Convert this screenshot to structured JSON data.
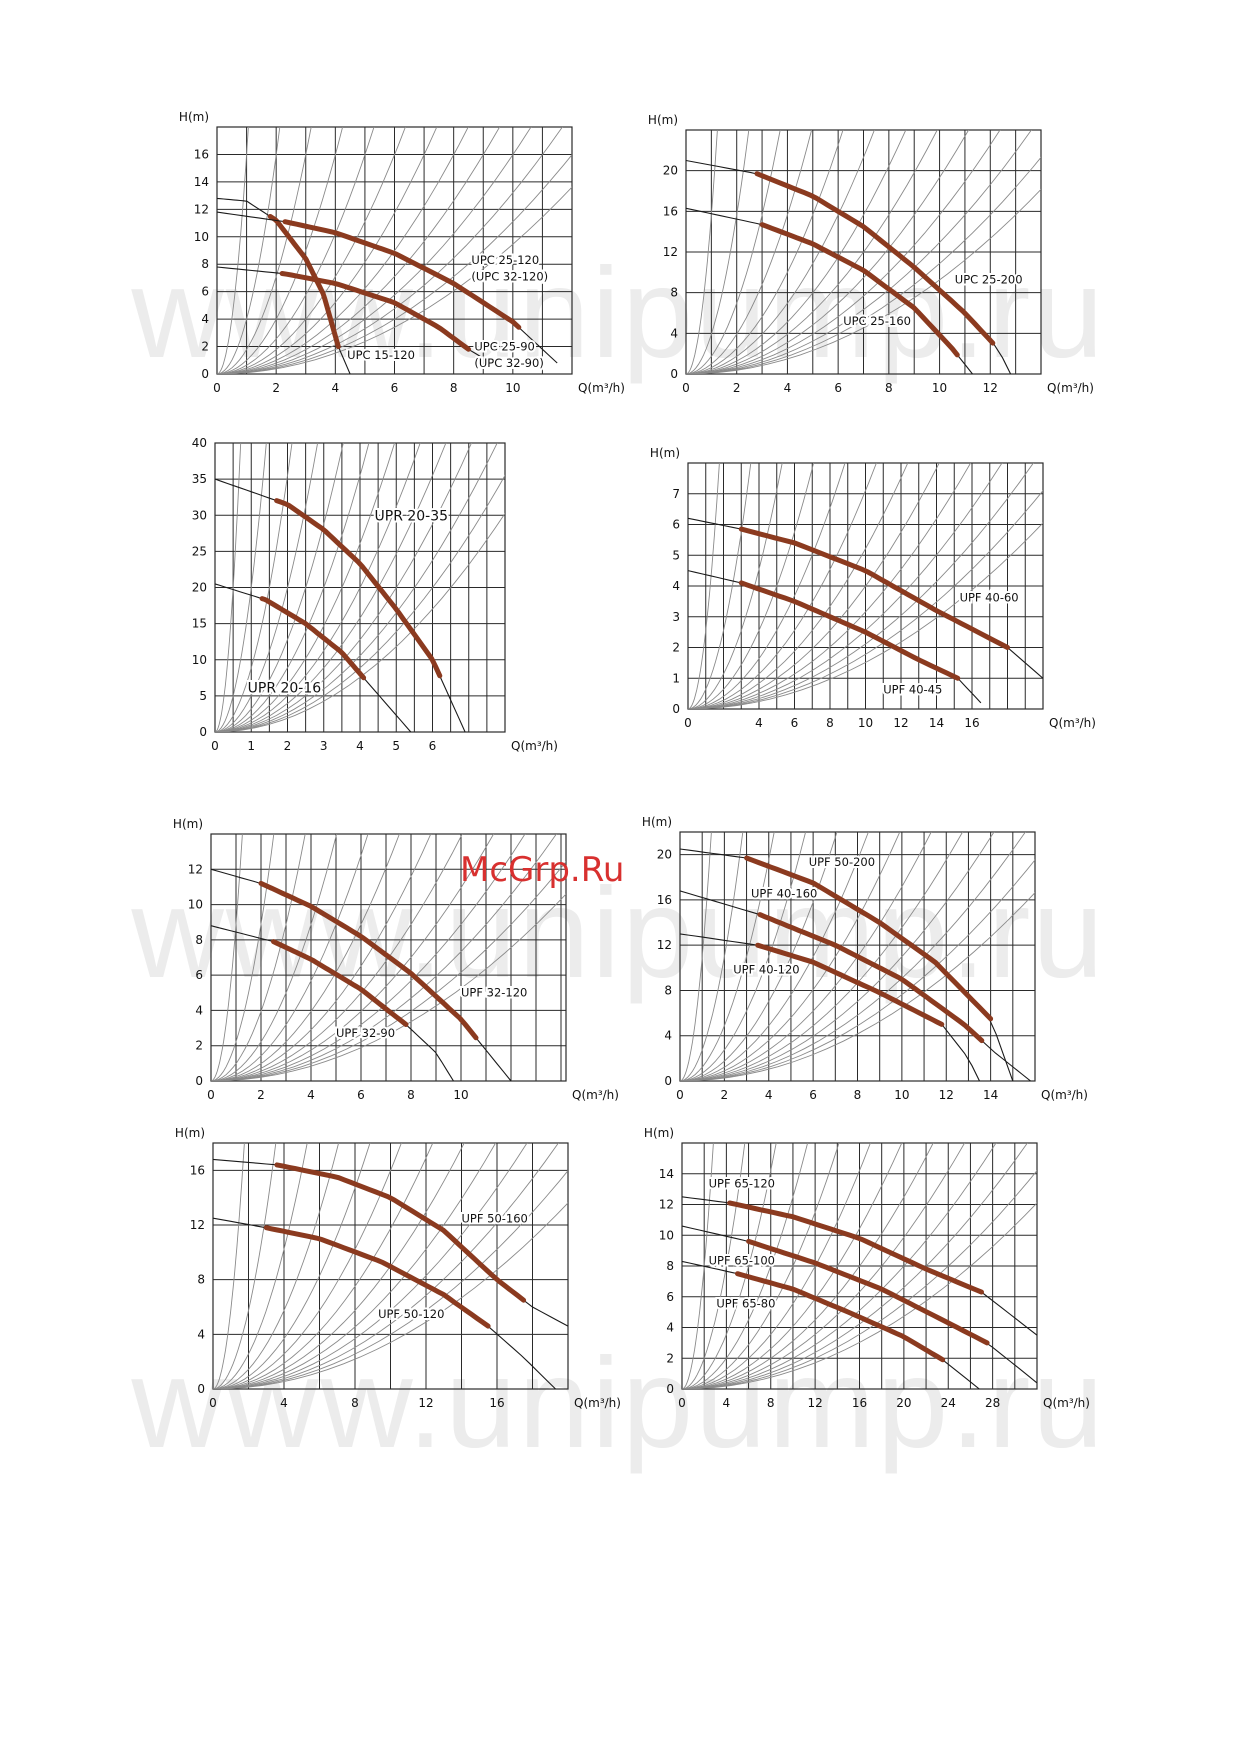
{
  "watermarks": [
    "www.unipump.ru",
    "www.unipump.ru",
    "www.unipump.ru"
  ],
  "overlay_text": "McGrp.Ru",
  "colors": {
    "grid": "#2a2a2a",
    "system_curve": "#8a8a8a",
    "pump_curve": "#1a1a1a",
    "work_range": "#8b3a1f",
    "watermark": "#ececec",
    "overlay": "#d8302f"
  },
  "chart_data": [
    {
      "type": "line",
      "ylabel": "H(m)",
      "xlabel": "Q(m³/h)",
      "xlim": [
        0,
        12
      ],
      "ylim": [
        0,
        18
      ],
      "xticks": [
        0,
        2,
        4,
        6,
        8,
        10
      ],
      "yticks": [
        0,
        2,
        4,
        6,
        8,
        10,
        12,
        14,
        16
      ],
      "series": [
        {
          "name": "UPC 15-120",
          "max_flow": 4.5,
          "points": [
            [
              0,
              12.8
            ],
            [
              1,
              12.6
            ],
            [
              2,
              11.2
            ],
            [
              3,
              8.4
            ],
            [
              3.6,
              5.8
            ],
            [
              4.1,
              2
            ],
            [
              4.5,
              0
            ]
          ],
          "range": [
            1.8,
            4.1
          ]
        },
        {
          "name": "UPC 25-120 (UPC 32-120)",
          "max_flow": 11.5,
          "points": [
            [
              0,
              11.8
            ],
            [
              2.3,
              11.1
            ],
            [
              4,
              10.3
            ],
            [
              6,
              8.8
            ],
            [
              8,
              6.6
            ],
            [
              10,
              3.8
            ],
            [
              11.5,
              0.8
            ]
          ],
          "range": [
            2.3,
            10.2
          ]
        },
        {
          "name": "UPC 25-90 (UPC 32-90)",
          "max_flow": 9.5,
          "points": [
            [
              0,
              7.8
            ],
            [
              2.3,
              7.3
            ],
            [
              4,
              6.6
            ],
            [
              6,
              5.2
            ],
            [
              7.5,
              3.4
            ],
            [
              8.5,
              1.8
            ],
            [
              9.5,
              0.5
            ]
          ],
          "range": [
            2.2,
            8.5
          ]
        }
      ],
      "labels": [
        {
          "text": "UPC 25-120",
          "x": 8.6,
          "y": 8
        },
        {
          "text": "(UPC 32-120)",
          "x": 8.6,
          "y": 6.8
        },
        {
          "text": "UPC 25-90",
          "x": 8.7,
          "y": 1.7
        },
        {
          "text": "(UPC 32-90)",
          "x": 8.7,
          "y": 0.5
        },
        {
          "text": "UPC 15-120",
          "x": 4.4,
          "y": 1.1
        }
      ]
    },
    {
      "type": "line",
      "ylabel": "H(m)",
      "xlabel": "Q(m³/h)",
      "xlim": [
        0,
        14
      ],
      "ylim": [
        0,
        24
      ],
      "xticks": [
        0,
        2,
        4,
        6,
        8,
        10,
        12
      ],
      "yticks": [
        0,
        4,
        8,
        12,
        16,
        20
      ],
      "series": [
        {
          "name": "UPC 25-200",
          "max_flow": 12.8,
          "points": [
            [
              0,
              21
            ],
            [
              2.8,
              19.7
            ],
            [
              5,
              17.5
            ],
            [
              7,
              14.5
            ],
            [
              9,
              10.5
            ],
            [
              11,
              6
            ],
            [
              12.3,
              2.5
            ],
            [
              12.8,
              0
            ]
          ],
          "range": [
            2.8,
            12.1
          ]
        },
        {
          "name": "UPC 25-160",
          "max_flow": 11.3,
          "points": [
            [
              0,
              16.3
            ],
            [
              3,
              14.7
            ],
            [
              5,
              12.8
            ],
            [
              7,
              10.2
            ],
            [
              9,
              6.5
            ],
            [
              10.5,
              2.5
            ],
            [
              11.3,
              0
            ]
          ],
          "range": [
            3,
            10.7
          ]
        }
      ],
      "labels": [
        {
          "text": "UPC 25-200",
          "x": 10.6,
          "y": 8.9
        },
        {
          "text": "UPC 25-160",
          "x": 6.2,
          "y": 4.8
        }
      ]
    },
    {
      "type": "line",
      "ylabel": "",
      "xlabel": "Q(m³/h)",
      "xlim": [
        0,
        8
      ],
      "ylim": [
        0,
        40
      ],
      "xticks": [
        0,
        1,
        2,
        3,
        4,
        5,
        6
      ],
      "yticks": [
        0,
        5,
        10,
        15,
        20,
        25,
        30,
        35,
        40
      ],
      "series": [
        {
          "name": "UPR 20-35",
          "max_flow": 6.9,
          "points": [
            [
              0,
              35
            ],
            [
              2,
              31.5
            ],
            [
              3,
              28
            ],
            [
              4,
              23.3
            ],
            [
              5,
              17
            ],
            [
              6,
              10
            ],
            [
              6.9,
              0
            ]
          ],
          "range": [
            1.7,
            6.2
          ]
        },
        {
          "name": "UPR 20-16",
          "max_flow": 5.4,
          "points": [
            [
              0,
              20.5
            ],
            [
              1.4,
              18.3
            ],
            [
              2.5,
              15
            ],
            [
              3.5,
              11
            ],
            [
              4.1,
              7.5
            ],
            [
              5.4,
              0
            ]
          ],
          "range": [
            1.3,
            4.1
          ]
        }
      ],
      "labels": [
        {
          "text": "UPR 20-35",
          "x": 4.4,
          "y": 29.3
        },
        {
          "text": "UPR 20-16",
          "x": 0.9,
          "y": 5.5
        }
      ]
    },
    {
      "type": "line",
      "ylabel": "H(m)",
      "xlabel": "Q(m³/h)",
      "xlim": [
        0,
        20
      ],
      "ylim": [
        0,
        8
      ],
      "xticks": [
        0,
        4,
        6,
        8,
        10,
        12,
        14,
        16
      ],
      "yticks": [
        0,
        1,
        2,
        3,
        4,
        5,
        6,
        7
      ],
      "series": [
        {
          "name": "UPF 40-60",
          "max_flow": 20,
          "points": [
            [
              0,
              6.2
            ],
            [
              3,
              5.85
            ],
            [
              6,
              5.4
            ],
            [
              10,
              4.5
            ],
            [
              14,
              3.2
            ],
            [
              18,
              2
            ],
            [
              20,
              1
            ]
          ],
          "range": [
            3,
            18
          ]
        },
        {
          "name": "UPF 40-45",
          "max_flow": 17,
          "points": [
            [
              0,
              4.5
            ],
            [
              3,
              4.1
            ],
            [
              6,
              3.5
            ],
            [
              10,
              2.5
            ],
            [
              13,
              1.6
            ],
            [
              15.2,
              1
            ],
            [
              16.5,
              0.2
            ]
          ],
          "range": [
            3,
            15.2
          ]
        }
      ],
      "labels": [
        {
          "text": "UPF 40-60",
          "x": 15.3,
          "y": 3.5
        },
        {
          "text": "UPF 40-45",
          "x": 11,
          "y": 0.5
        }
      ]
    },
    {
      "type": "line",
      "ylabel": "H(m)",
      "xlabel": "Q(m³/h)",
      "xlim": [
        0,
        14.2
      ],
      "ylim": [
        0,
        14
      ],
      "xticks": [
        0,
        2,
        4,
        6,
        8,
        10
      ],
      "yticks": [
        0,
        2,
        4,
        6,
        8,
        10,
        12
      ],
      "series": [
        {
          "name": "UPF 32-120",
          "max_flow": 12,
          "points": [
            [
              0,
              12
            ],
            [
              2,
              11.2
            ],
            [
              4,
              9.9
            ],
            [
              6,
              8.2
            ],
            [
              8,
              6.1
            ],
            [
              10,
              3.5
            ],
            [
              12,
              0
            ]
          ],
          "range": [
            2,
            10.6
          ]
        },
        {
          "name": "UPF 32-90",
          "max_flow": 9.7,
          "points": [
            [
              0,
              8.8
            ],
            [
              2.5,
              7.9
            ],
            [
              4,
              6.9
            ],
            [
              6,
              5.2
            ],
            [
              7.8,
              3.2
            ],
            [
              9,
              1.6
            ],
            [
              9.7,
              0
            ]
          ],
          "range": [
            2.5,
            7.8
          ]
        }
      ],
      "labels": [
        {
          "text": "UPF 32-120",
          "x": 10,
          "y": 4.8
        },
        {
          "text": "UPF 32-90",
          "x": 5,
          "y": 2.5
        }
      ]
    },
    {
      "type": "line",
      "ylabel": "H(m)",
      "xlabel": "Q(m³/h)",
      "xlim": [
        0,
        16
      ],
      "ylim": [
        0,
        22
      ],
      "xticks": [
        0,
        2,
        4,
        6,
        8,
        10,
        12,
        14
      ],
      "yticks": [
        0,
        4,
        8,
        12,
        16,
        20
      ],
      "series": [
        {
          "name": "UPF 50-200",
          "max_flow": 15,
          "points": [
            [
              0,
              20.5
            ],
            [
              3,
              19.7
            ],
            [
              6,
              17.5
            ],
            [
              9,
              14
            ],
            [
              11.5,
              10.5
            ],
            [
              14,
              5.5
            ],
            [
              15,
              0
            ]
          ],
          "range": [
            3,
            14
          ]
        },
        {
          "name": "UPF 40-160",
          "max_flow": 15.8,
          "points": [
            [
              0,
              16.8
            ],
            [
              3.6,
              14.7
            ],
            [
              7,
              12
            ],
            [
              10,
              9
            ],
            [
              12.8,
              5
            ],
            [
              14.2,
              2.5
            ],
            [
              15.8,
              0
            ]
          ],
          "range": [
            3.6,
            13.6
          ]
        },
        {
          "name": "UPF 40-120",
          "max_flow": 13.5,
          "points": [
            [
              0,
              13
            ],
            [
              3.5,
              12
            ],
            [
              6,
              10.5
            ],
            [
              9,
              7.8
            ],
            [
              11.8,
              5
            ],
            [
              13,
              2
            ],
            [
              13.5,
              0
            ]
          ],
          "range": [
            3.5,
            11.8
          ]
        }
      ],
      "labels": [
        {
          "text": "UPF 50-200",
          "x": 5.8,
          "y": 19
        },
        {
          "text": "UPF 40-160",
          "x": 3.2,
          "y": 16.2
        },
        {
          "text": "UPF 40-120",
          "x": 2.4,
          "y": 9.5
        }
      ]
    },
    {
      "type": "line",
      "ylabel": "H(m)",
      "xlabel": "Q(m³/h)",
      "xlim": [
        0,
        20
      ],
      "ylim": [
        0,
        18
      ],
      "xticks": [
        0,
        4,
        8,
        12,
        16
      ],
      "yticks": [
        0,
        4,
        8,
        12,
        16
      ],
      "series": [
        {
          "name": "UPF 50-160",
          "max_flow": 20,
          "points": [
            [
              0,
              16.8
            ],
            [
              3.6,
              16.4
            ],
            [
              7,
              15.5
            ],
            [
              10,
              14
            ],
            [
              13,
              11.6
            ],
            [
              16,
              8
            ],
            [
              18,
              6
            ],
            [
              20,
              4.6
            ]
          ],
          "range": [
            3.6,
            17.5
          ]
        },
        {
          "name": "UPF 50-120",
          "max_flow": 19.3,
          "points": [
            [
              0,
              12.5
            ],
            [
              3,
              11.8
            ],
            [
              6,
              11
            ],
            [
              9.5,
              9.3
            ],
            [
              13,
              6.9
            ],
            [
              15.5,
              4.6
            ],
            [
              17.5,
              2.3
            ],
            [
              19.3,
              0
            ]
          ],
          "range": [
            3,
            15.5
          ]
        }
      ],
      "labels": [
        {
          "text": "UPF 50-160",
          "x": 14,
          "y": 12.2
        },
        {
          "text": "UPF 50-120",
          "x": 9.3,
          "y": 5.2
        }
      ]
    },
    {
      "type": "line",
      "ylabel": "H(m)",
      "xlabel": "Q(m³/h)",
      "xlim": [
        0,
        32
      ],
      "ylim": [
        0,
        16
      ],
      "xticks": [
        0,
        4,
        8,
        12,
        16,
        20,
        24,
        28
      ],
      "yticks": [
        0,
        2,
        4,
        6,
        8,
        10,
        12,
        14
      ],
      "series": [
        {
          "name": "UPF 65-120",
          "max_flow": 32,
          "points": [
            [
              0,
              12.5
            ],
            [
              4.3,
              12.1
            ],
            [
              10,
              11.2
            ],
            [
              16,
              9.8
            ],
            [
              22,
              7.8
            ],
            [
              27,
              6.3
            ],
            [
              32,
              3.5
            ]
          ],
          "range": [
            4.3,
            27
          ]
        },
        {
          "name": "UPF 65-100",
          "max_flow": 32,
          "points": [
            [
              0,
              10.6
            ],
            [
              6,
              9.6
            ],
            [
              12,
              8.2
            ],
            [
              18,
              6.5
            ],
            [
              24,
              4.3
            ],
            [
              27.5,
              3
            ],
            [
              32,
              0.4
            ]
          ],
          "range": [
            6,
            27.5
          ]
        },
        {
          "name": "UPF 65-80",
          "max_flow": 27,
          "points": [
            [
              0,
              8.3
            ],
            [
              5,
              7.5
            ],
            [
              10,
              6.5
            ],
            [
              15,
              5
            ],
            [
              20,
              3.4
            ],
            [
              23.5,
              1.9
            ],
            [
              26.8,
              0
            ]
          ],
          "range": [
            5,
            23.5
          ]
        }
      ],
      "labels": [
        {
          "text": "UPF 65-120",
          "x": 2.4,
          "y": 13.1
        },
        {
          "text": "UPF 65-100",
          "x": 2.4,
          "y": 8.1
        },
        {
          "text": "UPF 65-80",
          "x": 3.1,
          "y": 5.3
        }
      ]
    }
  ]
}
